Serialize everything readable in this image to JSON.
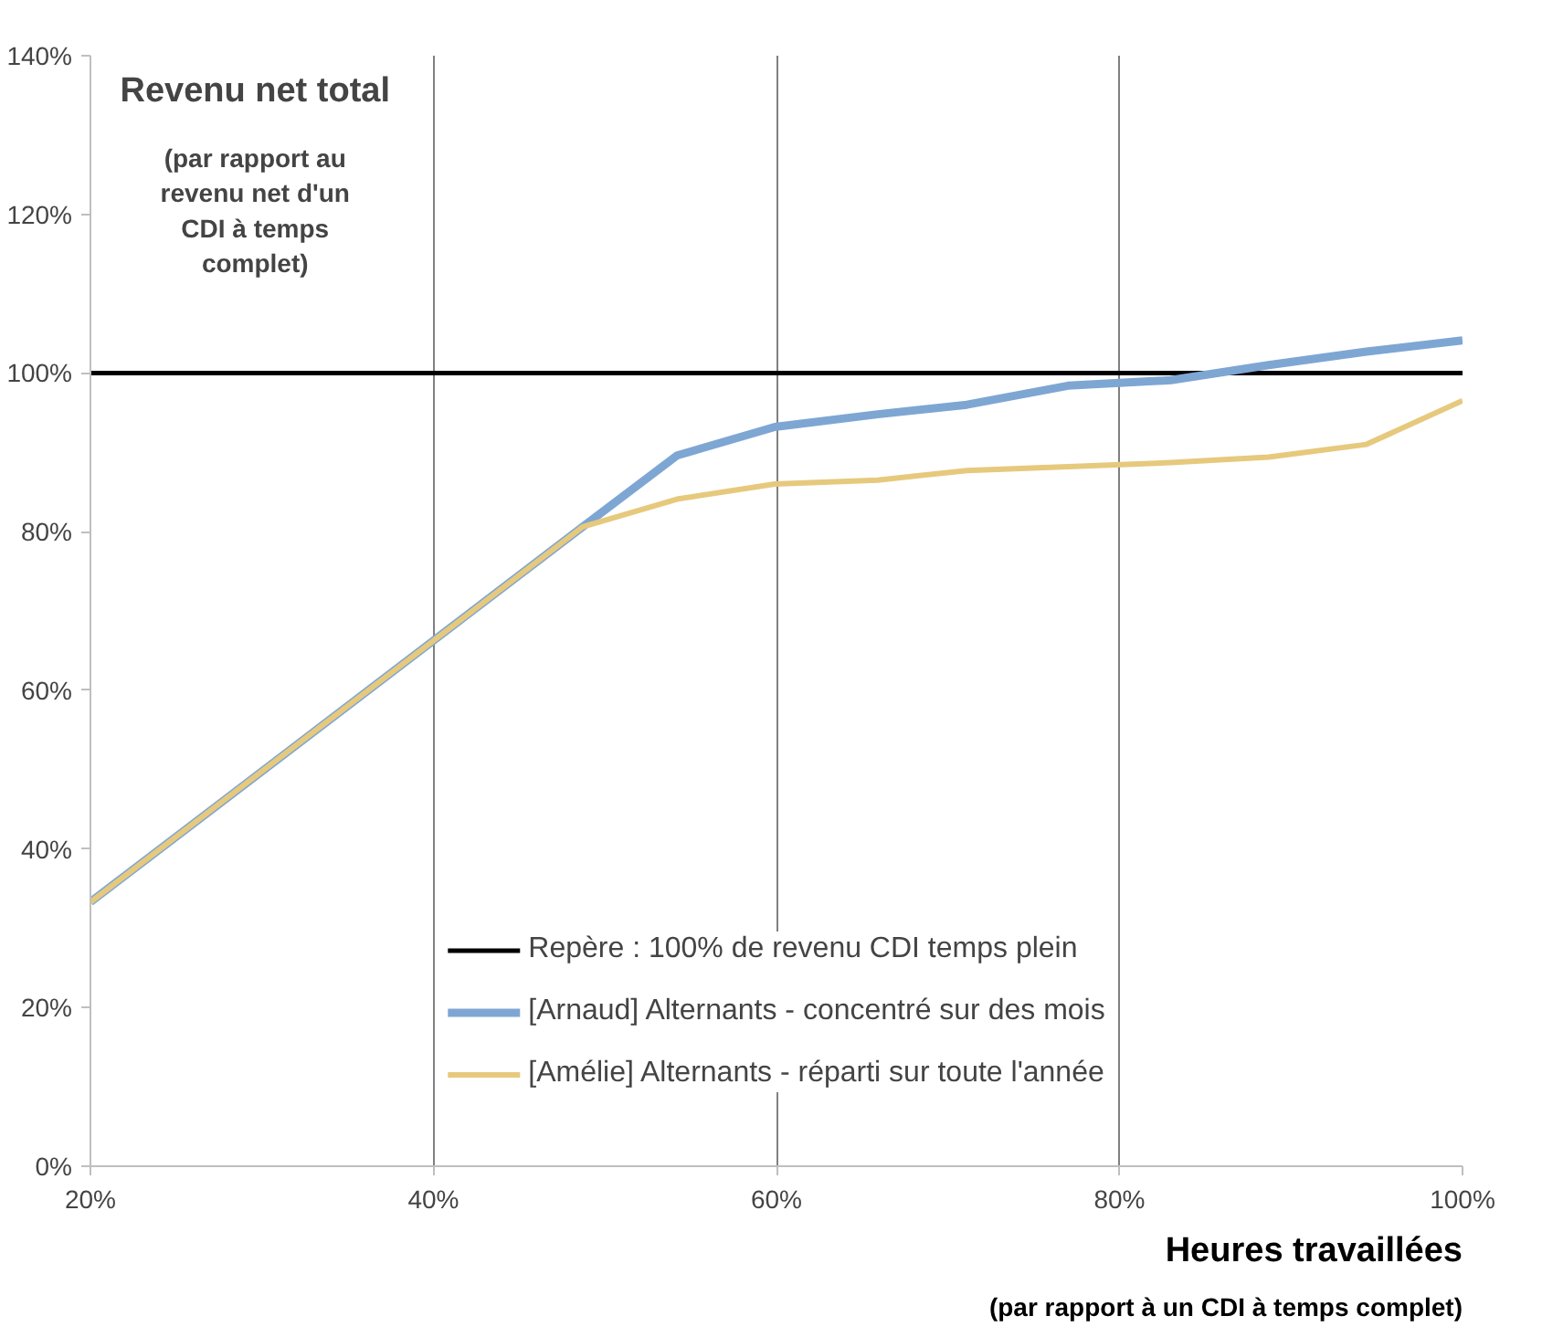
{
  "chart_data": {
    "type": "line",
    "title": "Revenu net total",
    "subtitle": "(par rapport au revenu net d'un CDI à temps complet)",
    "xlabel": "Heures travaillées",
    "annotations": [
      "(par rapport à un CDI à temps complet)"
    ],
    "x": [
      20,
      48.7,
      54.2,
      59.9,
      65.9,
      71.1,
      77.0,
      83.0,
      88.7,
      94.4,
      100
    ],
    "series": [
      {
        "name": "[Arnaud] Alternants - concentré sur des mois",
        "color": "#7ea6d3",
        "values": [
          33.3,
          80.6,
          89.6,
          93.2,
          94.8,
          96.0,
          98.4,
          99.1,
          101.0,
          102.7,
          104.1
        ]
      },
      {
        "name": "[Amélie] Alternants - réparti sur toute l'année",
        "color": "#e6c97d",
        "values": [
          33.3,
          80.6,
          84.1,
          86.0,
          86.5,
          87.7,
          88.2,
          88.7,
          89.4,
          91.0,
          96.5
        ]
      }
    ],
    "ref_lines": [
      {
        "axis": "y",
        "value": 100,
        "label": "Repère : 100% de revenu CDI temps plein",
        "color": "#000000"
      }
    ],
    "xlim": [
      20,
      100
    ],
    "xticks": [
      {
        "value": 20,
        "label": "20%"
      },
      {
        "value": 40,
        "label": "40%"
      },
      {
        "value": 60,
        "label": "60%"
      },
      {
        "value": 80,
        "label": "80%"
      },
      {
        "value": 100,
        "label": "100%"
      }
    ],
    "ylim": [
      0,
      140
    ],
    "yticks": [
      {
        "value": 0,
        "label": "0%"
      },
      {
        "value": 20,
        "label": "20%"
      },
      {
        "value": 40,
        "label": "40%"
      },
      {
        "value": 60,
        "label": "60%"
      },
      {
        "value": 80,
        "label": "80%"
      },
      {
        "value": 100,
        "label": "100%"
      },
      {
        "value": 120,
        "label": "120%"
      },
      {
        "value": 140,
        "label": "140%"
      }
    ],
    "grid": "x",
    "legend": "bottom",
    "marker": "none",
    "line_style": "solid"
  }
}
